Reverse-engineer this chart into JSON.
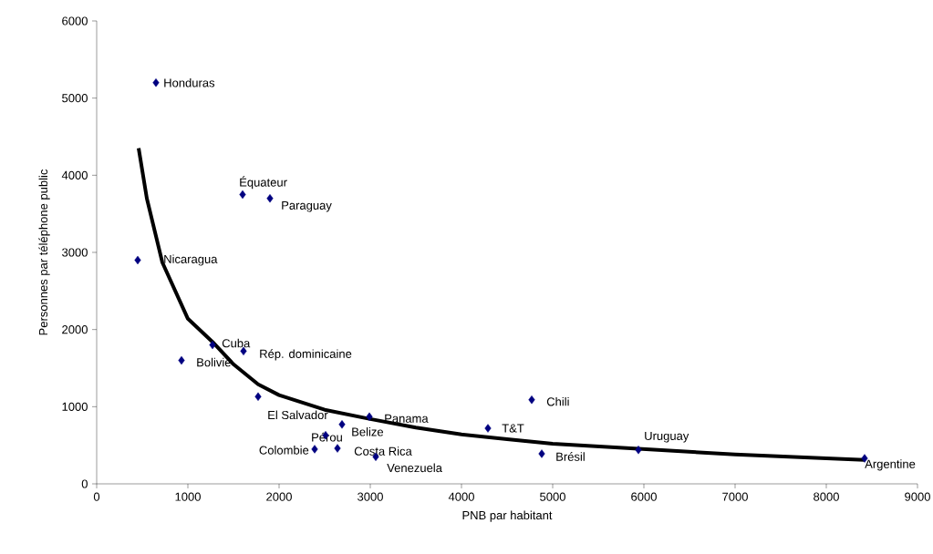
{
  "chart_data": {
    "type": "scatter",
    "xlabel": "PNB par habitant",
    "ylabel": "Personnes par téléphone public",
    "xlim": [
      0,
      9000
    ],
    "xticks": [
      0,
      1000,
      2000,
      3000,
      4000,
      5000,
      6000,
      7000,
      8000,
      9000
    ],
    "ylim": [
      0,
      6000
    ],
    "yticks": [
      0,
      1000,
      2000,
      3000,
      4000,
      5000,
      6000
    ],
    "series": [
      {
        "marker": "diamond",
        "color": "#000080",
        "x": [
          650,
          1600,
          1900,
          450,
          1270,
          1610,
          930,
          1770,
          2990,
          2690,
          2510,
          2390,
          2640,
          3060,
          4290,
          4770,
          4880,
          5940,
          8420
        ],
        "values": [
          5200,
          3750,
          3700,
          2900,
          1800,
          1720,
          1600,
          1130,
          870,
          770,
          630,
          450,
          460,
          350,
          720,
          1090,
          390,
          440,
          330
        ]
      },
      {
        "type": "line",
        "color": "#000000",
        "x": [
          460,
          550,
          720,
          1000,
          1270,
          1500,
          1770,
          2000,
          2500,
          3000,
          3500,
          4000,
          4500,
          5000,
          6000,
          7000,
          8000,
          8420
        ],
        "values": [
          4350,
          3700,
          2870,
          2140,
          1840,
          1550,
          1290,
          1150,
          960,
          840,
          730,
          640,
          580,
          520,
          450,
          380,
          330,
          310
        ]
      }
    ],
    "annotations": [
      {
        "text": "Honduras",
        "x": 650,
        "y": 5200
      },
      {
        "text": "Équateur",
        "x": 1600,
        "y": 3750
      },
      {
        "text": "Paraguay",
        "x": 1900,
        "y": 3700
      },
      {
        "text": "Nicaragua",
        "x": 450,
        "y": 2900
      },
      {
        "text": "Cuba",
        "x": 1270,
        "y": 1800
      },
      {
        "text": "Rép. dominicaine",
        "x": 1610,
        "y": 1720
      },
      {
        "text": "Bolivie",
        "x": 930,
        "y": 1600
      },
      {
        "text": "El Salvador",
        "x": 1770,
        "y": 1130
      },
      {
        "text": "Panama",
        "x": 2990,
        "y": 870
      },
      {
        "text": "Belize",
        "x": 2690,
        "y": 770
      },
      {
        "text": "Pérou",
        "x": 2510,
        "y": 630
      },
      {
        "text": "Colombie",
        "x": 2390,
        "y": 450
      },
      {
        "text": "Costa Rica",
        "x": 2640,
        "y": 460
      },
      {
        "text": "Venezuela",
        "x": 3060,
        "y": 350
      },
      {
        "text": "T&T",
        "x": 4290,
        "y": 720
      },
      {
        "text": "Chili",
        "x": 4770,
        "y": 1090
      },
      {
        "text": "Brésil",
        "x": 4880,
        "y": 390
      },
      {
        "text": "Uruguay",
        "x": 5940,
        "y": 440
      },
      {
        "text": "Argentine",
        "x": 8420,
        "y": 330
      }
    ]
  }
}
